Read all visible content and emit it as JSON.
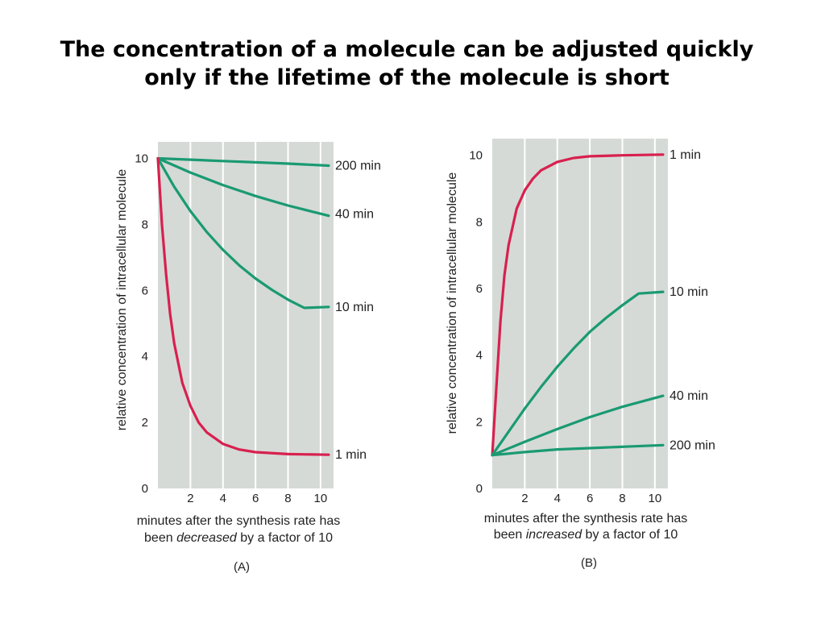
{
  "page": {
    "title_line1": "The concentration of a molecule can be adjusted quickly",
    "title_line2": "only if the lifetime of the molecule is short"
  },
  "colors": {
    "plot_background": "#d5dad6",
    "gridline": "#ffffff",
    "short_lifetime_curve": "#d8204f",
    "long_lifetime_curves": "#1a9a72"
  },
  "chart_data": [
    {
      "type": "line",
      "panel_label": "(A)",
      "ylabel": "relative concentration of intracellular molecule",
      "xlabel_line1": "minutes after the synthesis rate has",
      "xlabel_line2_pre": "been ",
      "xlabel_line2_em": "decreased",
      "xlabel_line2_post": " by a factor of 10",
      "xlim": [
        0,
        10.8
      ],
      "ylim": [
        0,
        10.5
      ],
      "x_ticks": [
        2,
        4,
        6,
        8,
        10
      ],
      "y_ticks": [
        0,
        2,
        4,
        6,
        8,
        10
      ],
      "grid": "vertical",
      "series": [
        {
          "name": "200 min",
          "color_key": "long_lifetime_curves",
          "x": [
            0,
            2,
            4,
            6,
            8,
            10.5
          ],
          "y": [
            10,
            9.96,
            9.92,
            9.88,
            9.84,
            9.78
          ]
        },
        {
          "name": "40 min",
          "color_key": "long_lifetime_curves",
          "x": [
            0,
            2,
            4,
            6,
            8,
            10.5
          ],
          "y": [
            10,
            9.57,
            9.19,
            8.86,
            8.57,
            8.26
          ]
        },
        {
          "name": "10 min",
          "color_key": "long_lifetime_curves",
          "x": [
            0,
            1,
            2,
            3,
            4,
            5,
            6,
            7,
            8,
            9,
            10.5
          ],
          "y": [
            10,
            9.14,
            8.4,
            7.77,
            7.23,
            6.76,
            6.36,
            6.02,
            5.72,
            5.47,
            5.5
          ]
        },
        {
          "name": "1 min",
          "color_key": "short_lifetime_curve",
          "x": [
            0,
            0.25,
            0.5,
            0.75,
            1,
            1.5,
            2,
            2.5,
            3,
            4,
            5,
            6,
            8,
            10.5
          ],
          "y": [
            10,
            8.0,
            6.5,
            5.3,
            4.4,
            3.2,
            2.5,
            2.0,
            1.7,
            1.35,
            1.18,
            1.1,
            1.04,
            1.02
          ]
        }
      ]
    },
    {
      "type": "line",
      "panel_label": "(B)",
      "ylabel": "relative concentration of intracellular molecule",
      "xlabel_line1": "minutes after the synthesis rate has",
      "xlabel_line2_pre": "been ",
      "xlabel_line2_em": "increased",
      "xlabel_line2_post": " by a factor of 10",
      "xlim": [
        0,
        10.8
      ],
      "ylim": [
        0,
        10.5
      ],
      "x_ticks": [
        2,
        4,
        6,
        8,
        10
      ],
      "y_ticks": [
        0,
        2,
        4,
        6,
        8,
        10
      ],
      "grid": "vertical",
      "series": [
        {
          "name": "1 min",
          "color_key": "short_lifetime_curve",
          "x": [
            0,
            0.25,
            0.5,
            0.75,
            1,
            1.5,
            2,
            2.5,
            3,
            4,
            5,
            6,
            8,
            10.5
          ],
          "y": [
            1,
            3.0,
            5.0,
            6.4,
            7.3,
            8.4,
            8.95,
            9.3,
            9.55,
            9.8,
            9.92,
            9.97,
            10.0,
            10.02
          ]
        },
        {
          "name": "10 min",
          "color_key": "long_lifetime_curves",
          "x": [
            0,
            1,
            2,
            3,
            4,
            5,
            6,
            7,
            8,
            9,
            10.5
          ],
          "y": [
            1,
            1.7,
            2.4,
            3.05,
            3.65,
            4.2,
            4.7,
            5.12,
            5.5,
            5.85,
            5.9
          ]
        },
        {
          "name": "40 min",
          "color_key": "long_lifetime_curves",
          "x": [
            0,
            2,
            4,
            6,
            8,
            10.5
          ],
          "y": [
            1,
            1.4,
            1.78,
            2.14,
            2.45,
            2.78
          ]
        },
        {
          "name": "200 min",
          "color_key": "long_lifetime_curves",
          "x": [
            0,
            2,
            4,
            6,
            8,
            10.5
          ],
          "y": [
            1,
            1.09,
            1.17,
            1.21,
            1.25,
            1.3
          ]
        }
      ]
    }
  ]
}
